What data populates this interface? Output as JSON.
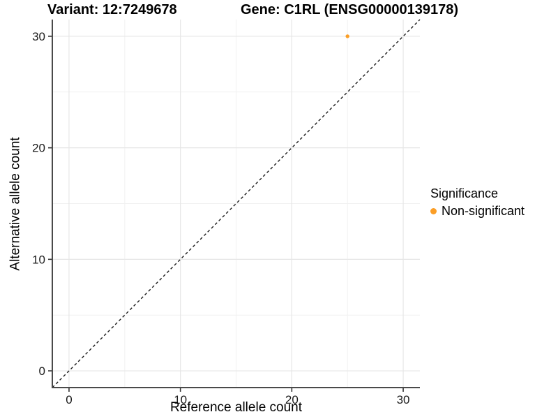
{
  "chart_data": {
    "type": "scatter",
    "titles": [
      "Variant: 12:7249678",
      "Gene: C1RL (ENSG00000139178)"
    ],
    "xlabel": "Reference allele count",
    "ylabel": "Alternative allele count",
    "xlim": [
      -1.5,
      31.5
    ],
    "ylim": [
      -1.5,
      31.5
    ],
    "xticks": [
      0,
      10,
      20,
      30
    ],
    "yticks": [
      0,
      10,
      20,
      30
    ],
    "minor_ticks": [
      5,
      15,
      25
    ],
    "grid": "major+minor gridlines, white background",
    "series": [
      {
        "name": "Non-significant",
        "color": "#FB9E26",
        "points": [
          {
            "x": 25,
            "y": 30
          }
        ]
      }
    ],
    "reference_line": {
      "type": "identity y=x",
      "from": [
        -1.5,
        -1.5
      ],
      "to": [
        31.5,
        31.5
      ],
      "style": "dashed",
      "color": "#1a1a1a"
    },
    "legend": {
      "title": "Significance",
      "position": "right",
      "entries": [
        {
          "label": "Non-significant",
          "color": "#FB9E26",
          "marker": "circle"
        }
      ]
    }
  },
  "colors": {
    "point_orange": "#FB9E26",
    "axis_line": "#4a4a4a",
    "tick_mark": "#333333",
    "tick_label": "#1a1a1a",
    "grid_major": "#e6e6e6",
    "grid_minor": "#f1f1f1",
    "background": "#ffffff"
  }
}
